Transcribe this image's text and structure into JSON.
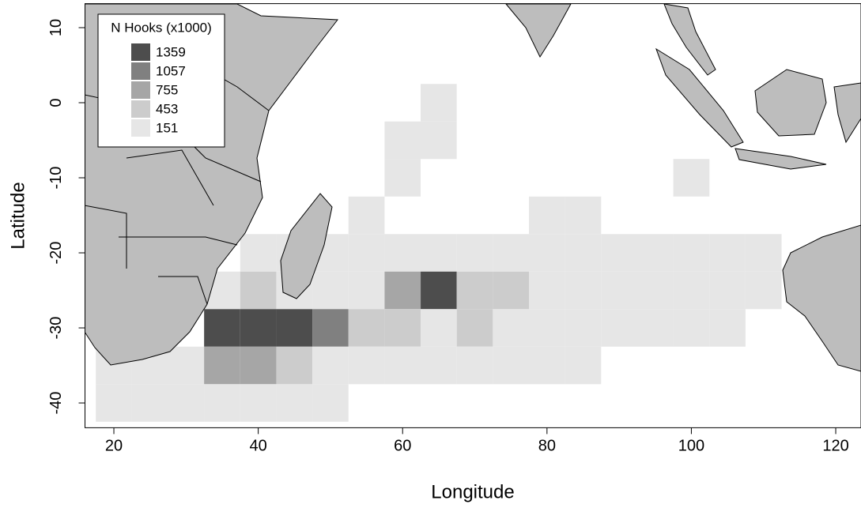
{
  "chart_data": {
    "type": "heatmap",
    "x_label": "Longitude",
    "y_label": "Latitude",
    "xlim": [
      16,
      123.5
    ],
    "ylim": [
      -43.3,
      13.2
    ],
    "xticks": [
      20,
      40,
      60,
      80,
      100,
      120
    ],
    "yticks": [
      10,
      0,
      -10,
      -20,
      -30,
      -40
    ],
    "legend": {
      "title": "N Hooks (x1000)",
      "values": [
        1359,
        1057,
        755,
        453,
        151
      ],
      "colors": [
        "#4d4d4d",
        "#808080",
        "#a6a6a6",
        "#cccccc",
        "#e6e6e6"
      ],
      "position": "top-left"
    },
    "x": [
      65,
      60,
      65,
      60,
      100,
      55,
      80,
      85,
      40,
      45,
      50,
      55,
      60,
      65,
      70,
      75,
      80,
      85,
      90,
      95,
      100,
      105,
      110,
      35,
      40,
      45,
      50,
      55,
      60,
      65,
      70,
      75,
      80,
      85,
      90,
      95,
      100,
      105,
      110,
      35,
      40,
      45,
      50,
      55,
      60,
      65,
      70,
      75,
      80,
      85,
      90,
      95,
      100,
      105,
      20,
      25,
      30,
      35,
      40,
      45,
      50,
      55,
      60,
      65,
      70,
      75,
      80,
      85,
      20,
      25,
      30,
      35,
      40,
      45,
      50
    ],
    "y": [
      0,
      -5,
      -5,
      -10,
      -10,
      -15,
      -15,
      -15,
      -20,
      -20,
      -20,
      -20,
      -20,
      -20,
      -20,
      -20,
      -20,
      -20,
      -20,
      -20,
      -20,
      -20,
      -20,
      -25,
      -25,
      -25,
      -25,
      -25,
      -25,
      -25,
      -25,
      -25,
      -25,
      -25,
      -25,
      -25,
      -25,
      -25,
      -25,
      -30,
      -30,
      -30,
      -30,
      -30,
      -30,
      -30,
      -30,
      -30,
      -30,
      -30,
      -30,
      -30,
      -30,
      -30,
      -35,
      -35,
      -35,
      -35,
      -35,
      -35,
      -35,
      -35,
      -35,
      -35,
      -35,
      -35,
      -35,
      -35,
      -40,
      -40,
      -40,
      -40,
      -40,
      -40,
      -40
    ],
    "values": [
      151,
      151,
      151,
      151,
      151,
      151,
      151,
      151,
      151,
      151,
      151,
      151,
      151,
      151,
      151,
      151,
      151,
      151,
      151,
      151,
      151,
      151,
      151,
      151,
      453,
      151,
      151,
      151,
      755,
      1359,
      453,
      453,
      151,
      151,
      151,
      151,
      151,
      151,
      151,
      1359,
      1359,
      1359,
      1057,
      453,
      453,
      151,
      453,
      151,
      151,
      151,
      151,
      151,
      151,
      151,
      151,
      151,
      151,
      755,
      755,
      453,
      151,
      151,
      151,
      151,
      151,
      151,
      151,
      151,
      151,
      151,
      151,
      151,
      151,
      151,
      151
    ]
  }
}
